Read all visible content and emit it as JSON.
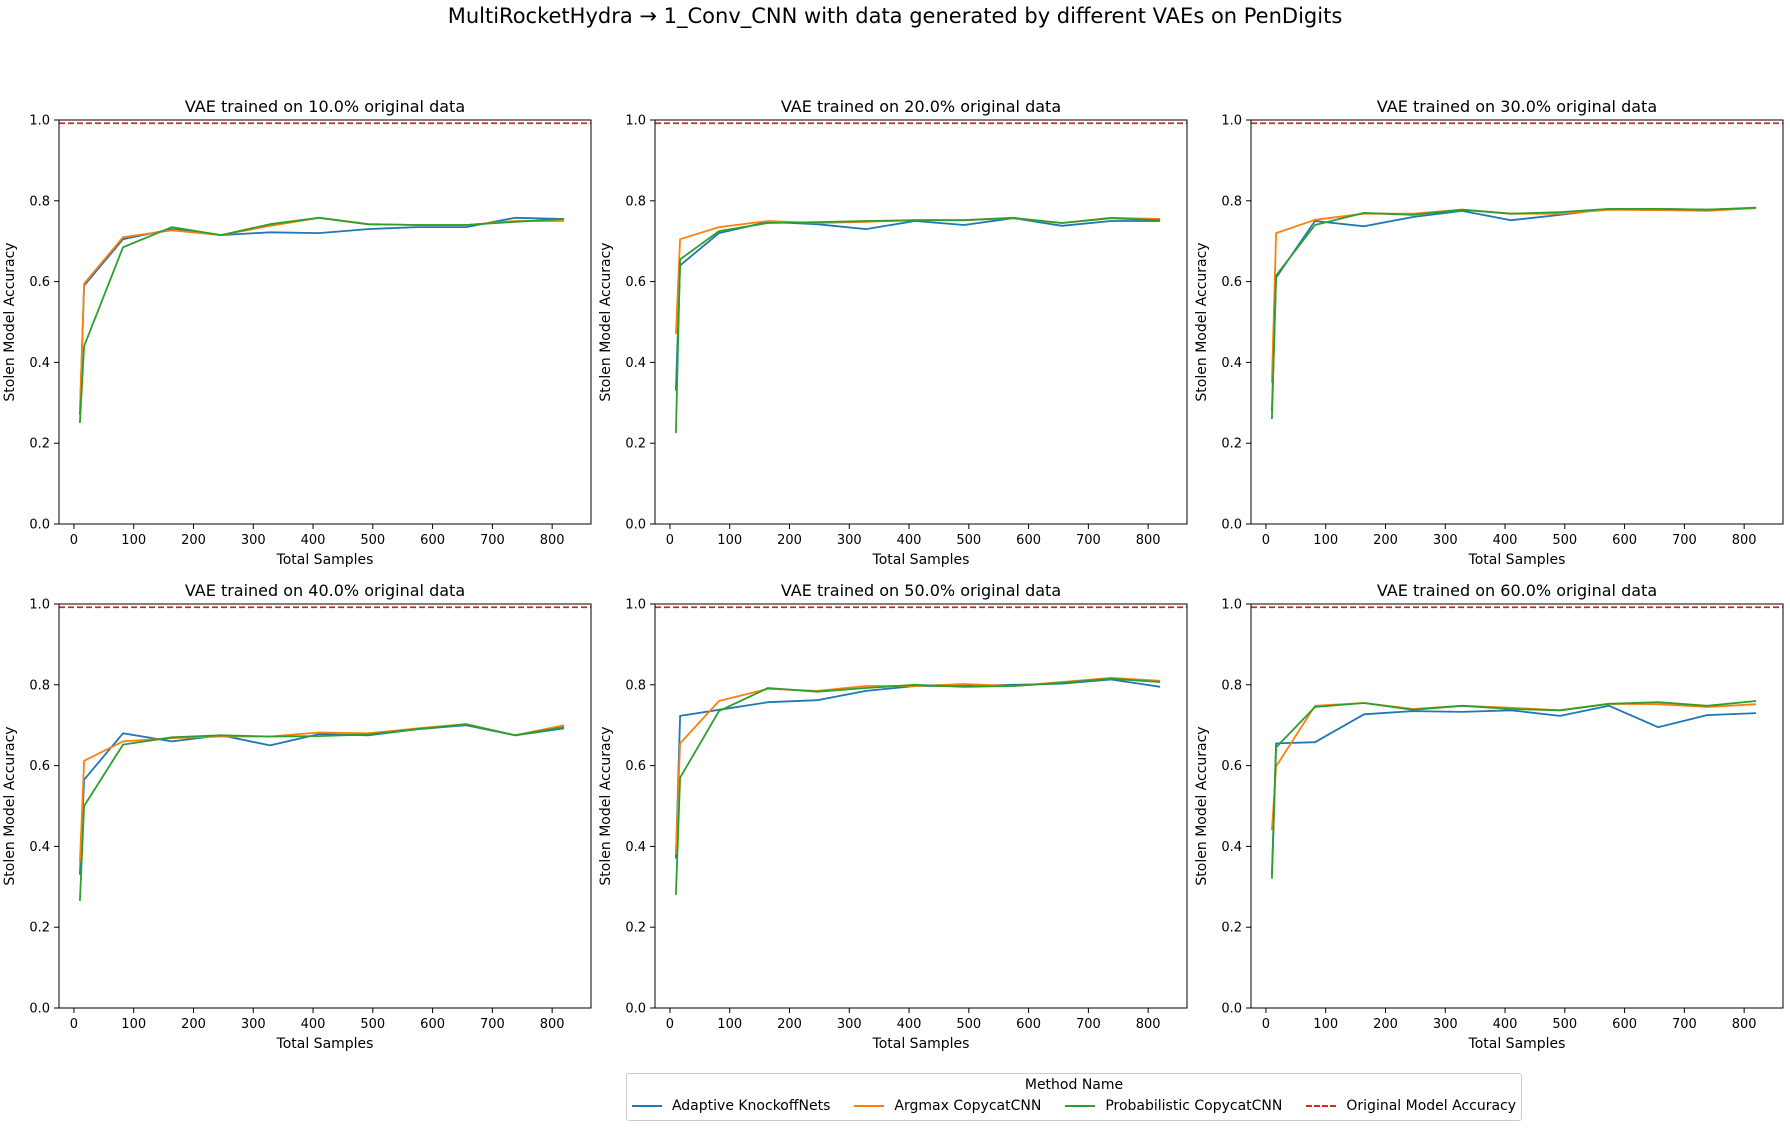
{
  "figure_title": "MultiRocketHydra → 1_Conv_CNN with data generated by different VAEs on PenDigits",
  "legend": {
    "title": "Method Name",
    "position": "bottom-center",
    "items": [
      {
        "label": "Adaptive KnockoffNets",
        "color": "#1f77b4",
        "style": "solid"
      },
      {
        "label": "Argmax CopycatCNN",
        "color": "#ff7f0e",
        "style": "solid"
      },
      {
        "label": "Probabilistic CopycatCNN",
        "color": "#2ca02c",
        "style": "solid"
      },
      {
        "label": "Original Model Accuracy",
        "color": "#d62728",
        "style": "dashed"
      }
    ]
  },
  "chart_data": [
    {
      "type": "line",
      "title": "VAE trained on 10.0% original data",
      "xlabel": "Total Samples",
      "ylabel": "Stolen Model Accuracy",
      "xlim": [
        -25,
        865
      ],
      "ylim": [
        0,
        1.0
      ],
      "xticks": [
        0,
        100,
        200,
        300,
        400,
        500,
        600,
        700,
        800
      ],
      "yticks": [
        0.0,
        0.2,
        0.4,
        0.6,
        0.8,
        1.0
      ],
      "grid": false,
      "hline": {
        "name": "Original Model Accuracy",
        "y": 0.992
      },
      "x": [
        10,
        17,
        82,
        164,
        246,
        328,
        410,
        492,
        574,
        656,
        738,
        820
      ],
      "series": [
        {
          "name": "Adaptive KnockoffNets",
          "values": [
            0.27,
            0.59,
            0.705,
            0.73,
            0.715,
            0.722,
            0.72,
            0.73,
            0.735,
            0.735,
            0.758,
            0.755
          ]
        },
        {
          "name": "Argmax CopycatCNN",
          "values": [
            0.28,
            0.595,
            0.71,
            0.727,
            0.715,
            0.738,
            0.758,
            0.742,
            0.74,
            0.74,
            0.75,
            0.75
          ]
        },
        {
          "name": "Probabilistic CopycatCNN",
          "values": [
            0.25,
            0.44,
            0.685,
            0.735,
            0.715,
            0.742,
            0.758,
            0.742,
            0.74,
            0.74,
            0.748,
            0.755
          ]
        }
      ]
    },
    {
      "type": "line",
      "title": "VAE trained on 20.0% original data",
      "xlabel": "Total Samples",
      "ylabel": "Stolen Model Accuracy",
      "xlim": [
        -25,
        865
      ],
      "ylim": [
        0,
        1.0
      ],
      "xticks": [
        0,
        100,
        200,
        300,
        400,
        500,
        600,
        700,
        800
      ],
      "yticks": [
        0.0,
        0.2,
        0.4,
        0.6,
        0.8,
        1.0
      ],
      "grid": false,
      "hline": {
        "name": "Original Model Accuracy",
        "y": 0.992
      },
      "x": [
        10,
        17,
        82,
        164,
        246,
        328,
        410,
        492,
        574,
        656,
        738,
        820
      ],
      "series": [
        {
          "name": "Adaptive KnockoffNets",
          "values": [
            0.33,
            0.64,
            0.72,
            0.748,
            0.742,
            0.73,
            0.75,
            0.74,
            0.757,
            0.738,
            0.75,
            0.75
          ]
        },
        {
          "name": "Argmax CopycatCNN",
          "values": [
            0.47,
            0.705,
            0.735,
            0.75,
            0.745,
            0.748,
            0.752,
            0.752,
            0.757,
            0.745,
            0.758,
            0.755
          ]
        },
        {
          "name": "Probabilistic CopycatCNN",
          "values": [
            0.225,
            0.655,
            0.725,
            0.745,
            0.747,
            0.75,
            0.752,
            0.752,
            0.758,
            0.745,
            0.757,
            0.752
          ]
        }
      ]
    },
    {
      "type": "line",
      "title": "VAE trained on 30.0% original data",
      "xlabel": "Total Samples",
      "ylabel": "Stolen Model Accuracy",
      "xlim": [
        -25,
        865
      ],
      "ylim": [
        0,
        1.0
      ],
      "xticks": [
        0,
        100,
        200,
        300,
        400,
        500,
        600,
        700,
        800
      ],
      "yticks": [
        0.0,
        0.2,
        0.4,
        0.6,
        0.8,
        1.0
      ],
      "grid": false,
      "hline": {
        "name": "Original Model Accuracy",
        "y": 0.992
      },
      "x": [
        10,
        17,
        82,
        164,
        246,
        328,
        410,
        492,
        574,
        656,
        738,
        820
      ],
      "series": [
        {
          "name": "Adaptive KnockoffNets",
          "values": [
            0.28,
            0.61,
            0.75,
            0.737,
            0.76,
            0.775,
            0.752,
            0.765,
            0.78,
            0.78,
            0.778,
            0.782
          ]
        },
        {
          "name": "Argmax CopycatCNN",
          "values": [
            0.35,
            0.72,
            0.753,
            0.768,
            0.768,
            0.778,
            0.768,
            0.768,
            0.778,
            0.777,
            0.775,
            0.782
          ]
        },
        {
          "name": "Probabilistic CopycatCNN",
          "values": [
            0.26,
            0.615,
            0.74,
            0.77,
            0.765,
            0.778,
            0.768,
            0.772,
            0.78,
            0.78,
            0.778,
            0.783
          ]
        }
      ]
    },
    {
      "type": "line",
      "title": "VAE trained on 40.0% original data",
      "xlabel": "Total Samples",
      "ylabel": "Stolen Model Accuracy",
      "xlim": [
        -25,
        865
      ],
      "ylim": [
        0,
        1.0
      ],
      "xticks": [
        0,
        100,
        200,
        300,
        400,
        500,
        600,
        700,
        800
      ],
      "yticks": [
        0.0,
        0.2,
        0.4,
        0.6,
        0.8,
        1.0
      ],
      "grid": false,
      "hline": {
        "name": "Original Model Accuracy",
        "y": 0.992
      },
      "x": [
        10,
        17,
        82,
        164,
        246,
        328,
        410,
        492,
        574,
        656,
        738,
        820
      ],
      "series": [
        {
          "name": "Adaptive KnockoffNets",
          "values": [
            0.33,
            0.565,
            0.68,
            0.66,
            0.675,
            0.65,
            0.678,
            0.675,
            0.69,
            0.7,
            0.675,
            0.692
          ]
        },
        {
          "name": "Argmax CopycatCNN",
          "values": [
            0.36,
            0.612,
            0.66,
            0.668,
            0.672,
            0.672,
            0.682,
            0.68,
            0.692,
            0.703,
            0.675,
            0.7
          ]
        },
        {
          "name": "Probabilistic CopycatCNN",
          "values": [
            0.265,
            0.5,
            0.652,
            0.67,
            0.675,
            0.672,
            0.673,
            0.677,
            0.69,
            0.702,
            0.675,
            0.695
          ]
        }
      ]
    },
    {
      "type": "line",
      "title": "VAE trained on 50.0% original data",
      "xlabel": "Total Samples",
      "ylabel": "Stolen Model Accuracy",
      "xlim": [
        -25,
        865
      ],
      "ylim": [
        0,
        1.0
      ],
      "xticks": [
        0,
        100,
        200,
        300,
        400,
        500,
        600,
        700,
        800
      ],
      "yticks": [
        0.0,
        0.2,
        0.4,
        0.6,
        0.8,
        1.0
      ],
      "grid": false,
      "hline": {
        "name": "Original Model Accuracy",
        "y": 0.992
      },
      "x": [
        10,
        17,
        82,
        164,
        246,
        328,
        410,
        492,
        574,
        656,
        738,
        820
      ],
      "series": [
        {
          "name": "Adaptive KnockoffNets",
          "values": [
            0.37,
            0.723,
            0.738,
            0.757,
            0.762,
            0.785,
            0.797,
            0.797,
            0.8,
            0.803,
            0.813,
            0.795
          ]
        },
        {
          "name": "Argmax CopycatCNN",
          "values": [
            0.38,
            0.655,
            0.76,
            0.79,
            0.785,
            0.797,
            0.797,
            0.802,
            0.797,
            0.807,
            0.817,
            0.81
          ]
        },
        {
          "name": "Probabilistic CopycatCNN",
          "values": [
            0.28,
            0.57,
            0.735,
            0.792,
            0.783,
            0.792,
            0.8,
            0.795,
            0.797,
            0.805,
            0.815,
            0.807
          ]
        }
      ]
    },
    {
      "type": "line",
      "title": "VAE trained on 60.0% original data",
      "xlabel": "Total Samples",
      "ylabel": "Stolen Model Accuracy",
      "xlim": [
        -25,
        865
      ],
      "ylim": [
        0,
        1.0
      ],
      "xticks": [
        0,
        100,
        200,
        300,
        400,
        500,
        600,
        700,
        800
      ],
      "yticks": [
        0.0,
        0.2,
        0.4,
        0.6,
        0.8,
        1.0
      ],
      "grid": false,
      "hline": {
        "name": "Original Model Accuracy",
        "y": 0.992
      },
      "x": [
        10,
        17,
        82,
        164,
        246,
        328,
        410,
        492,
        574,
        656,
        738,
        820
      ],
      "series": [
        {
          "name": "Adaptive KnockoffNets",
          "values": [
            0.33,
            0.655,
            0.658,
            0.727,
            0.735,
            0.733,
            0.737,
            0.723,
            0.748,
            0.695,
            0.725,
            0.73
          ]
        },
        {
          "name": "Argmax CopycatCNN",
          "values": [
            0.44,
            0.598,
            0.748,
            0.755,
            0.74,
            0.748,
            0.743,
            0.737,
            0.753,
            0.752,
            0.745,
            0.752
          ]
        },
        {
          "name": "Probabilistic CopycatCNN",
          "values": [
            0.32,
            0.645,
            0.745,
            0.755,
            0.738,
            0.748,
            0.74,
            0.737,
            0.753,
            0.757,
            0.748,
            0.76
          ]
        }
      ]
    }
  ]
}
